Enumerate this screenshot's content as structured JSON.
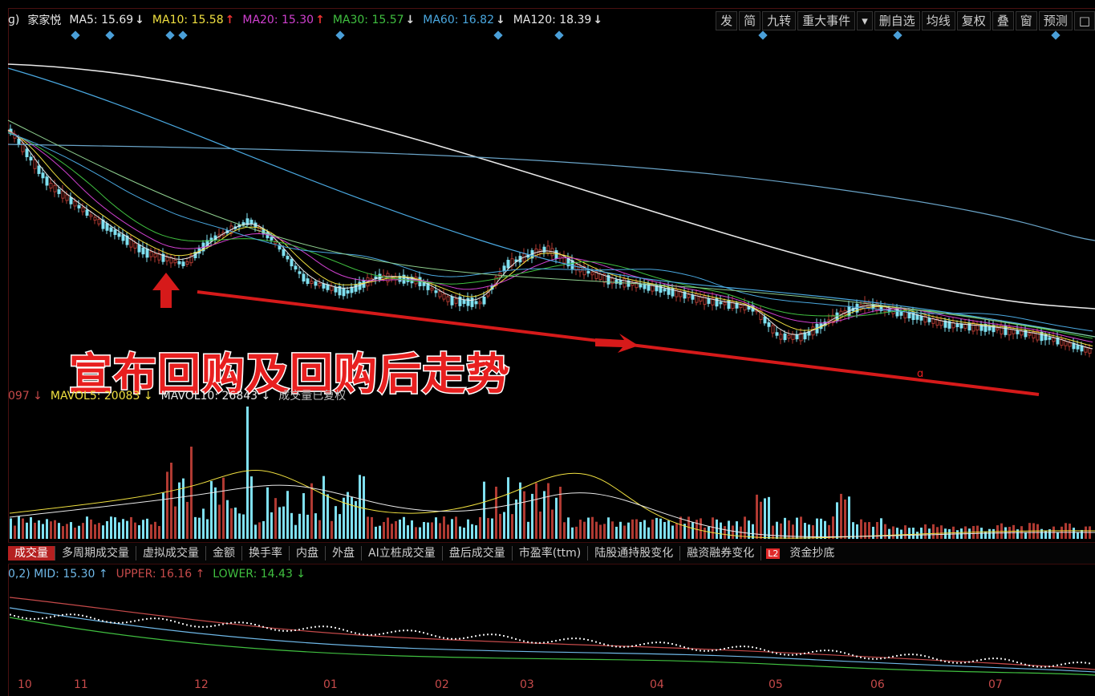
{
  "chart_data": {
    "type": "candlestick",
    "title": "",
    "price_panel": {
      "stock_name": "家家悦",
      "legend_prefix": "ɡ)",
      "moving_averages": [
        {
          "name": "MA5",
          "value": "15.69",
          "color": "#e8e8e8",
          "direction": "down"
        },
        {
          "name": "MA10",
          "value": "15.58",
          "color": "#f0e040",
          "direction": "up"
        },
        {
          "name": "MA20",
          "value": "15.30",
          "color": "#d040d0",
          "direction": "up"
        },
        {
          "name": "MA30",
          "value": "15.57",
          "color": "#40c040",
          "direction": "down"
        },
        {
          "name": "MA60",
          "value": "16.82",
          "color": "#4aa8e0",
          "direction": "down"
        },
        {
          "name": "MA120",
          "value": "18.39",
          "color": "#e8e8e8",
          "direction": "down"
        }
      ],
      "annotation_text": "宣布回购及回购后走势",
      "tooltip_marker": "ɑ"
    },
    "volume_panel": {
      "legend": [
        {
          "text": "097",
          "color": "#c64a4a",
          "direction": "down"
        },
        {
          "text": "MAVOL5: 20083",
          "color": "#f0e040",
          "direction": "down"
        },
        {
          "text": "MAVOL10: 26843",
          "color": "#e8e8e8",
          "direction": "down"
        },
        {
          "text": "成交量已复权",
          "color": "#bbbbbb",
          "direction": ""
        }
      ],
      "up_color": "#b03a32",
      "down_color": "#7fe0f0"
    },
    "indicator_panel": {
      "legend": [
        {
          "text": "0,2) MID: 15.30",
          "color": "#6fb8e8",
          "direction": "up"
        },
        {
          "text": "UPPER: 16.16",
          "color": "#c64a4a",
          "direction": "up"
        },
        {
          "text": "LOWER: 14.43",
          "color": "#40c040",
          "direction": "down"
        }
      ]
    },
    "x_ticks": [
      "10",
      "11",
      "12",
      "01",
      "02",
      "03",
      "04",
      "05",
      "06",
      "07"
    ]
  },
  "toolbar": {
    "buttons": [
      "发",
      "简",
      "九转",
      "重大事件",
      "▾",
      "删自选",
      "均线",
      "复权",
      "叠",
      "窗",
      "预测",
      "□"
    ]
  },
  "tabs": {
    "items": [
      "成交量",
      "多周期成交量",
      "虚拟成交量",
      "金额",
      "换手率",
      "内盘",
      "外盘",
      "AI立桩成交量",
      "盘后成交量",
      "市盈率(ttm)",
      "陆股通持股变化",
      "融资融券变化"
    ],
    "badge": "L2",
    "last": "资金抄底"
  },
  "colors": {
    "background": "#000000",
    "up": "#b03a32",
    "down": "#7fe0f0",
    "annotation_red": "#e81f1f",
    "trend_line": "#d61a1a",
    "diamond": "#4a9fd8"
  }
}
